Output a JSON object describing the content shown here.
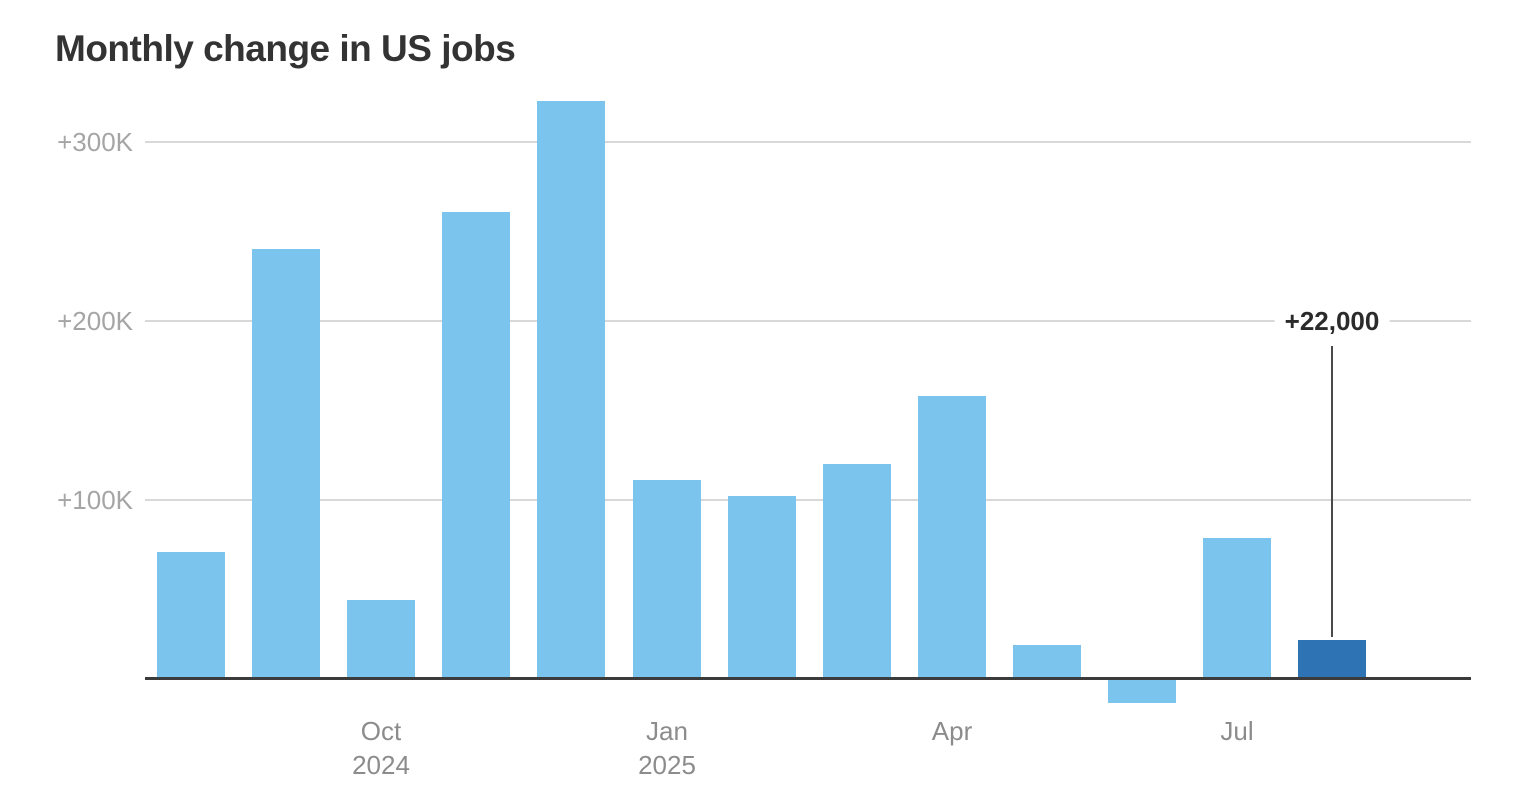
{
  "title": "Monthly change in US jobs",
  "colors": {
    "bar": "#7bc4ee",
    "bar_highlight": "#2e74b5",
    "gridline": "#d8d8d8",
    "axis_line": "#3b3b3b",
    "y_label": "#a5a5a5",
    "x_label": "#8c8c8c",
    "title": "#333333",
    "annotation_text": "#2b2b2b",
    "annotation_line": "#4a4a4a",
    "background": "#ffffff"
  },
  "chart_data": {
    "type": "bar",
    "title": "Monthly change in US jobs",
    "xlabel": "",
    "ylabel": "",
    "unit": "thousands of jobs",
    "categories": [
      "Aug 2024",
      "Sep 2024",
      "Oct 2024",
      "Nov 2024",
      "Dec 2024",
      "Jan 2025",
      "Feb 2025",
      "Mar 2025",
      "Apr 2025",
      "May 2025",
      "Jun 2025",
      "Jul 2025",
      "Aug 2025"
    ],
    "values": [
      71,
      240,
      44,
      261,
      323,
      111,
      102,
      120,
      158,
      19,
      -13,
      79,
      22
    ],
    "highlight_index": 12,
    "annotation": {
      "text": "+22,000",
      "target_index": 12
    },
    "y_ticks": [
      {
        "label": "+300K",
        "value": 300
      },
      {
        "label": "+200K",
        "value": 200
      },
      {
        "label": "+100K",
        "value": 100
      }
    ],
    "x_ticks": [
      {
        "index": 2,
        "lines": [
          "Oct",
          "2024"
        ]
      },
      {
        "index": 5,
        "lines": [
          "Jan",
          "2025"
        ]
      },
      {
        "index": 8,
        "lines": [
          "Apr"
        ]
      },
      {
        "index": 11,
        "lines": [
          "Jul"
        ]
      }
    ],
    "ylim": [
      -30,
      340
    ],
    "grid": true,
    "legend": false
  }
}
